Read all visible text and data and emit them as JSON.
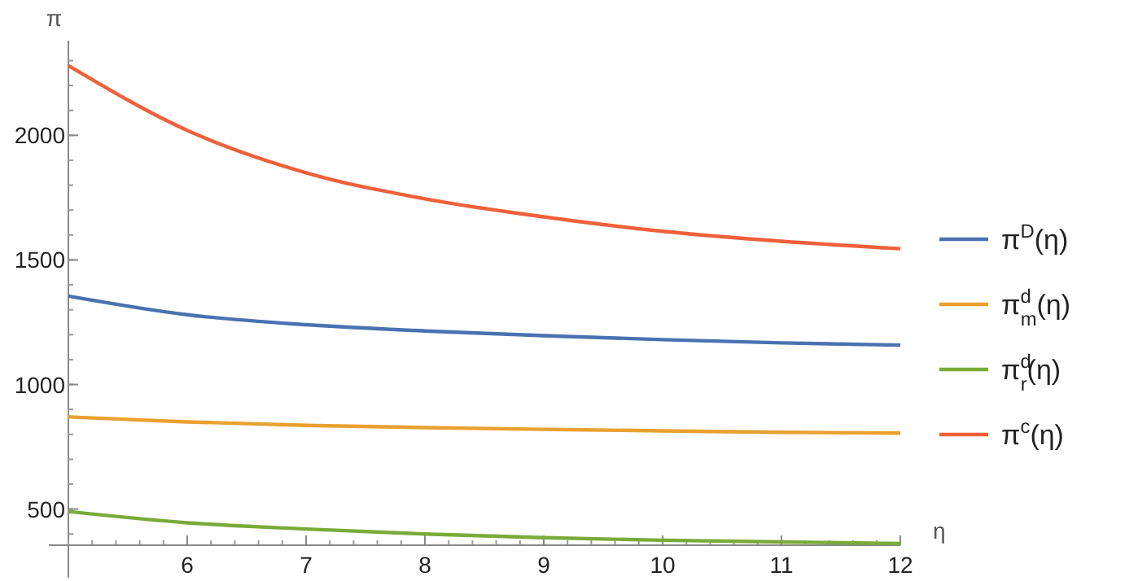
{
  "chart_data": {
    "type": "line",
    "xlabel": "η",
    "ylabel": "π",
    "x": [
      5,
      6,
      7,
      8,
      9,
      10,
      11,
      12
    ],
    "series": [
      {
        "name": "π$^{D}$(η)",
        "color": "#4a72b0",
        "values": [
          1355,
          1280,
          1240,
          1215,
          1196,
          1180,
          1167,
          1158
        ]
      },
      {
        "name": "π$^{d}$$_{m}$(η)",
        "color": "#e9a030",
        "values": [
          870,
          850,
          836,
          827,
          820,
          814,
          808,
          805
        ]
      },
      {
        "name": "π$^{d}$$_{r}$(η)",
        "color": "#7aab3a",
        "values": [
          490,
          445,
          420,
          400,
          385,
          375,
          368,
          362
        ]
      },
      {
        "name": "π$^{c}$(η)",
        "color": "#f0603a",
        "values": [
          2280,
          2020,
          1850,
          1745,
          1673,
          1615,
          1575,
          1545
        ]
      }
    ],
    "xlim": [
      5,
      12
    ],
    "ylim": [
      355,
      2380
    ],
    "xticks": [
      6,
      7,
      8,
      9,
      10,
      11,
      12
    ],
    "yticks": [
      500,
      1000,
      1500,
      2000
    ],
    "grid": false,
    "legend": "right",
    "marker": "none",
    "line_style": "solid"
  }
}
